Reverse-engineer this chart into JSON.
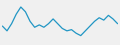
{
  "values": [
    56,
    52,
    58,
    66,
    72,
    68,
    60,
    55,
    57,
    55,
    58,
    62,
    58,
    54,
    52,
    53,
    50,
    48,
    52,
    56,
    60,
    63,
    61,
    65,
    62,
    58
  ],
  "line_color": "#2196c4",
  "background_color": "#f0f0f0",
  "ylim_min": 42,
  "ylim_max": 76
}
